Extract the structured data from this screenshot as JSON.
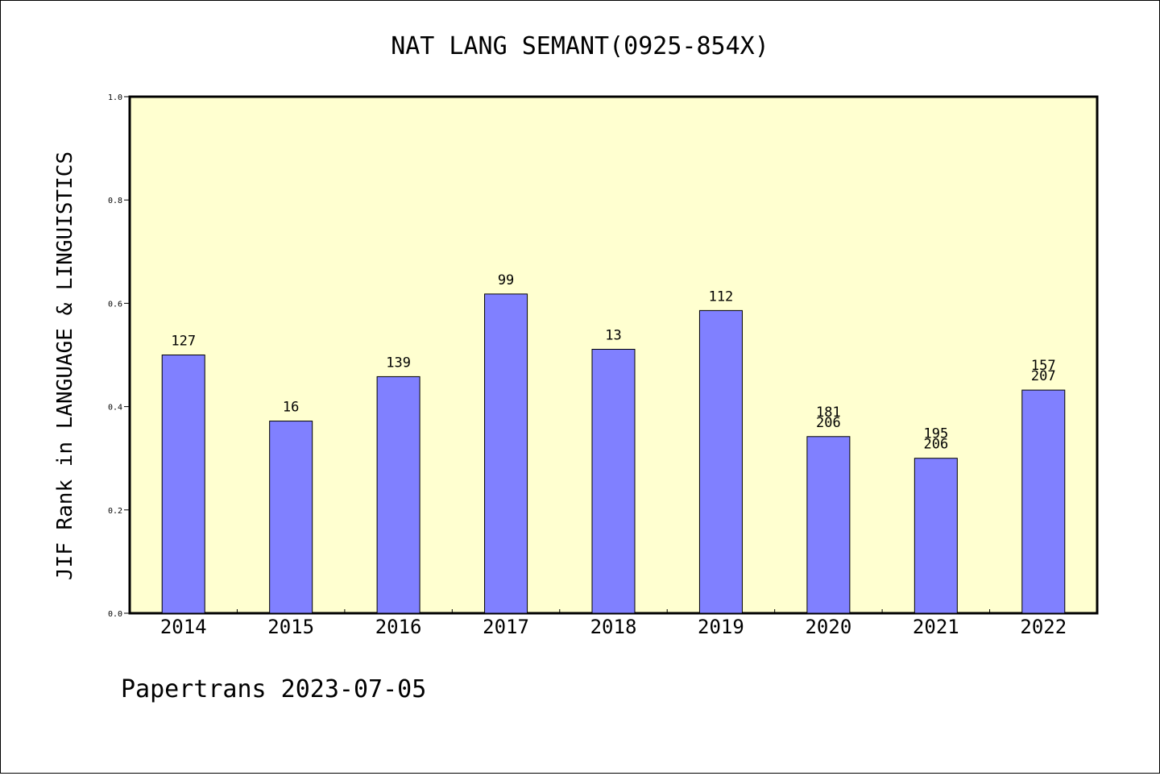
{
  "chart_data": {
    "type": "bar",
    "title": "NAT LANG SEMANT(0925-854X)",
    "xlabel": "",
    "ylabel": "JIF Rank in LANGUAGE & LINGUISTICS",
    "ylim": [
      0,
      1.0
    ],
    "yticks": [
      "0.0",
      "0.2",
      "0.4",
      "0.6",
      "0.8",
      "1.0"
    ],
    "categories": [
      "2014",
      "2015",
      "2016",
      "2017",
      "2018",
      "2019",
      "2020",
      "2021",
      "2022"
    ],
    "values": [
      0.5,
      0.372,
      0.458,
      0.618,
      0.511,
      0.586,
      0.342,
      0.3,
      0.432
    ],
    "labels": [
      [
        "127"
      ],
      [
        "16"
      ],
      [
        "139"
      ],
      [
        "99"
      ],
      [
        "13"
      ],
      [
        "112"
      ],
      [
        "181",
        "206"
      ],
      [
        "195",
        "206"
      ],
      [
        "157",
        "207"
      ]
    ],
    "grid": false,
    "colors": {
      "bar": "#8080ff",
      "plot_bg": "#ffffd0",
      "axis": "#000000"
    }
  },
  "footer": {
    "note": "Papertrans 2023-07-05"
  }
}
